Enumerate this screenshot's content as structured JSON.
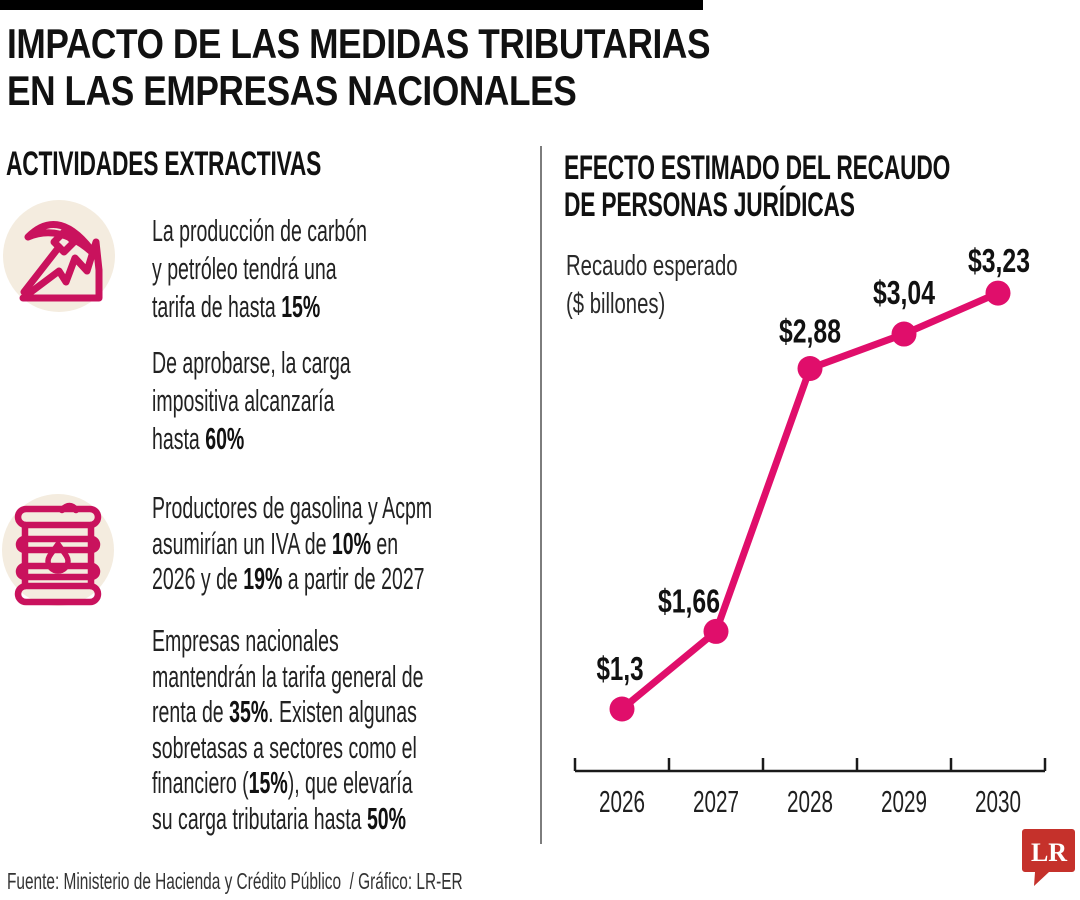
{
  "colors": {
    "chart_pink": "#e00e6b",
    "icon_pink": "#c9125d",
    "icon_bg": "#f4ecdf",
    "top_bar": "#000000",
    "divider": "#7d7d7d",
    "logo_red": "#c5312b",
    "axis_black": "#1a1a1a"
  },
  "header": {
    "title": "IMPACTO DE LAS MEDIDAS TRIBUTARIAS\nEN LAS EMPRESAS NACIONALES"
  },
  "left_section": {
    "heading": "ACTIVIDADES EXTRACTIVAS",
    "items": [
      {
        "icon": "pickaxe-icon",
        "segments": [
          {
            "t": "La producción de carbón\ny petróleo tendrá una\ntarifa de hasta ",
            "b": false
          },
          {
            "t": "15%",
            "b": true
          }
        ]
      },
      {
        "icon": null,
        "segments": [
          {
            "t": "De aprobarse, la carga\nimpositiva alcanzaría\nhasta ",
            "b": false
          },
          {
            "t": "60%",
            "b": true
          }
        ]
      },
      {
        "icon": "oil-barrel-icon",
        "segments": [
          {
            "t": "Productores de gasolina y Acpm\nasumirían un IVA de ",
            "b": false
          },
          {
            "t": "10%",
            "b": true
          },
          {
            "t": " en\n2026 y de ",
            "b": false
          },
          {
            "t": "19%",
            "b": true
          },
          {
            "t": " a partir de 2027",
            "b": false
          }
        ]
      },
      {
        "icon": null,
        "segments": [
          {
            "t": "Empresas nacionales\nmantendrán la tarifa general de\nrenta de ",
            "b": false
          },
          {
            "t": "35%",
            "b": true
          },
          {
            "t": ". Existen algunas\nsobretasas a sectores como el\nfinanciero (",
            "b": false
          },
          {
            "t": "15%",
            "b": true
          },
          {
            "t": "), que elevaría\nsu carga tributaria hasta ",
            "b": false
          },
          {
            "t": "50%",
            "b": true
          }
        ]
      }
    ]
  },
  "right_section": {
    "heading": "EFECTO ESTIMADO DEL RECAUDO\nDE PERSONAS JURÍDICAS",
    "axis_note": "Recaudo esperado\n($ billones)"
  },
  "chart_data": {
    "type": "line",
    "title": "Efecto estimado del recaudo de personas jurídicas",
    "ylabel": "Recaudo esperado ($ billones)",
    "xlabel": "",
    "categories": [
      "2026",
      "2027",
      "2028",
      "2029",
      "2030"
    ],
    "values": [
      1.3,
      1.66,
      2.88,
      3.04,
      3.23
    ],
    "point_labels": [
      "$1,3",
      "$1,66",
      "$2,88",
      "$3,04",
      "$3,23"
    ],
    "ylim": [
      1.0,
      3.5
    ],
    "grid": false,
    "legend_position": "none",
    "line_color": "#e00e6b"
  },
  "footer": {
    "source": "Fuente: Ministerio de Hacienda y Crédito Público  / Gráfico: LR-ER",
    "logo_text": "LR"
  }
}
